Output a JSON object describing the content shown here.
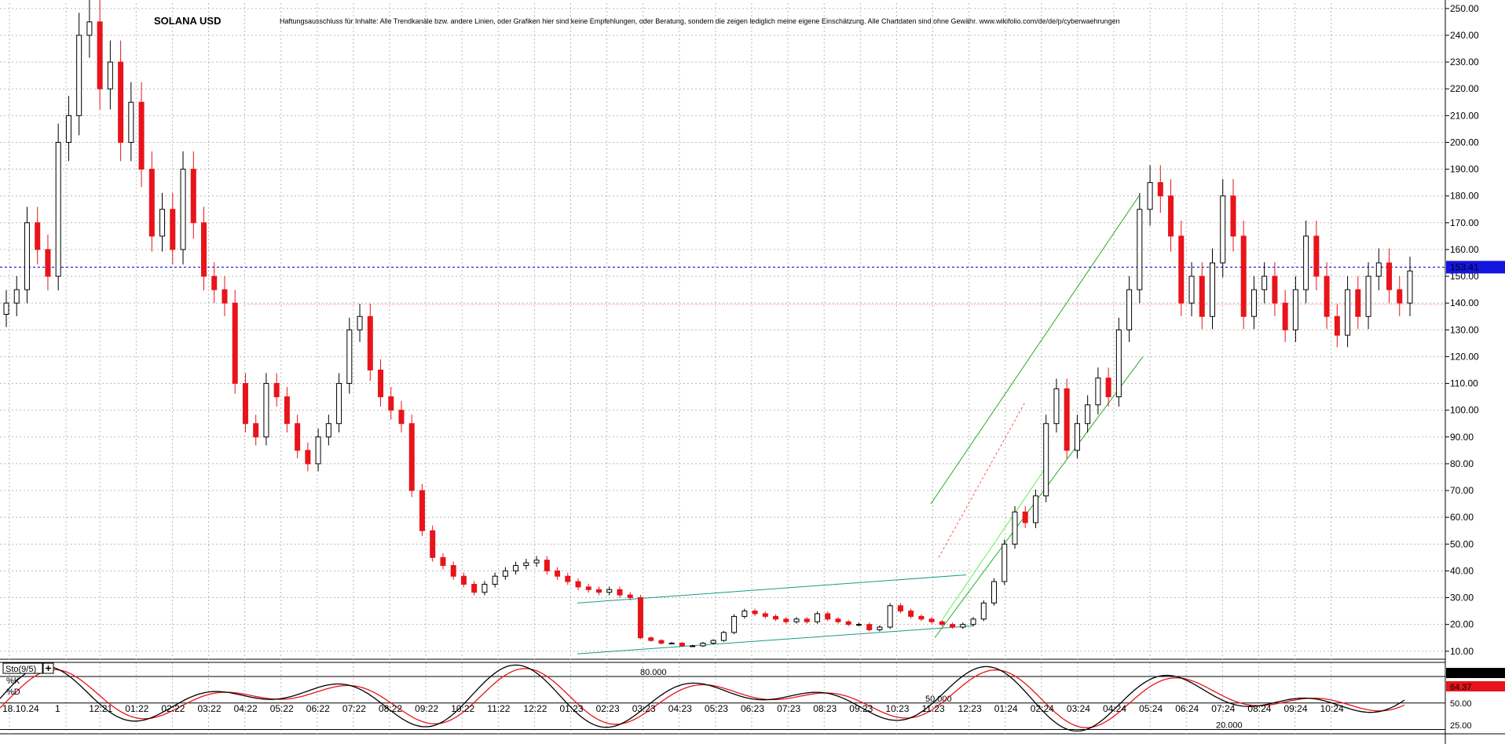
{
  "chart_data": [
    {
      "type": "candlestick",
      "title": "SOLANA USD",
      "disclaimer": "Haftungsausschluss für Inhalte: Alle Trendkanäle bzw. andere Linien, oder Grafiken hier sind keine Empfehlungen, oder Beratung, sondern die zeigen lediglich meine eigene Einschätzung. Alle Chartdaten sind ohne Gewähr.  www.wikifolio.com/de/de/p/cyberwaehrungen",
      "x_ticks": [
        "18.10.24",
        "1",
        "12:21",
        "01:22",
        "02:22",
        "03:22",
        "04:22",
        "05:22",
        "06:22",
        "07:22",
        "08:22",
        "09:22",
        "10:22",
        "11:22",
        "12:22",
        "01:23",
        "02:23",
        "03:23",
        "04:23",
        "05:23",
        "06:23",
        "07:23",
        "08:23",
        "09:23",
        "10:23",
        "11:23",
        "12:23",
        "01:24",
        "02:24",
        "03:24",
        "04:24",
        "05:24",
        "06:24",
        "07:24",
        "08:24",
        "09:24",
        "10:24"
      ],
      "y_ticks": [
        "250.00",
        "240.00",
        "230.00",
        "220.00",
        "210.00",
        "200.00",
        "190.00",
        "180.00",
        "170.00",
        "160.00",
        "150.00",
        "140.00",
        "130.00",
        "120.00",
        "110.00",
        "100.00",
        "90.00",
        "80.00",
        "70.00",
        "60.00",
        "50.00",
        "40.00",
        "30.00",
        "20.00",
        "10.00"
      ],
      "ylim": [
        7,
        252
      ],
      "current_price": "153.41",
      "current_price_value": 153.41,
      "horizontal_lines": [
        {
          "value": 139.5,
          "style": "dotted",
          "color": "#ff7777"
        }
      ],
      "close_series": [
        140,
        145,
        170,
        160,
        150,
        200,
        210,
        240,
        245,
        220,
        230,
        200,
        215,
        190,
        165,
        175,
        160,
        190,
        170,
        150,
        145,
        140,
        110,
        95,
        90,
        110,
        105,
        95,
        85,
        80,
        90,
        95,
        110,
        130,
        135,
        115,
        105,
        100,
        95,
        70,
        55,
        45,
        42,
        38,
        35,
        32,
        35,
        38,
        40,
        42,
        43,
        44,
        40,
        38,
        36,
        34,
        33,
        32,
        33,
        31,
        30,
        15,
        14,
        13,
        13,
        12,
        12,
        13,
        14,
        17,
        23,
        25,
        24,
        23,
        22,
        21,
        22,
        21,
        24,
        22,
        21,
        20,
        20,
        18,
        19,
        27,
        25,
        23,
        22,
        21,
        20,
        19,
        20,
        22,
        28,
        36,
        50,
        62,
        58,
        68,
        95,
        108,
        85,
        95,
        102,
        112,
        105,
        130,
        145,
        175,
        185,
        180,
        165,
        140,
        150,
        135,
        155,
        180,
        165,
        135,
        145,
        150,
        140,
        130,
        145,
        165,
        150,
        135,
        128,
        145,
        135,
        150,
        155,
        145,
        140,
        152
      ]
    },
    {
      "type": "line",
      "title": "Sto(9/5)",
      "series": [
        {
          "name": "%K"
        },
        {
          "name": "%D"
        }
      ],
      "ylim": [
        16,
        96
      ],
      "levels": [
        {
          "label": "80.000",
          "value": 80
        },
        {
          "label": "50.000",
          "value": 50
        },
        {
          "label": "20.000",
          "value": 20
        }
      ],
      "y_ticks": [
        "50.00",
        "25.00"
      ],
      "k_value": "82.58",
      "d_value": "64.37"
    }
  ],
  "colors": {
    "up_candle": "#000000",
    "down_candle": "#e8141b",
    "price_line": "#1515e0",
    "price_label_bg": "#1515e0",
    "d_label_bg": "#e8141b",
    "k_label_bg": "#000000",
    "trend_green": "#22b022",
    "trend_teal": "#1a9a8a",
    "trend_red": "#ff5555",
    "grid": "#b9b9b9"
  }
}
